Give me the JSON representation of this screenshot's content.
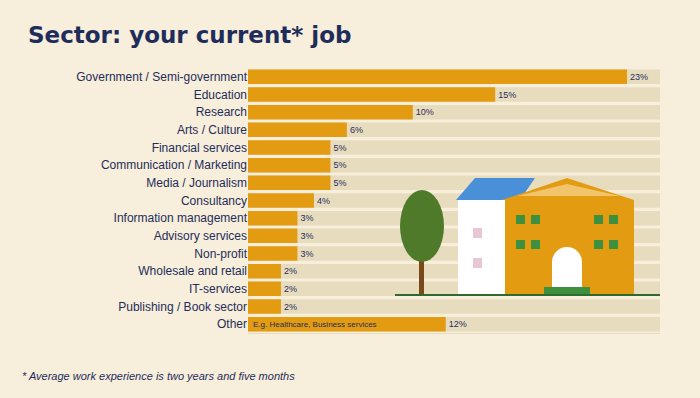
{
  "chart_data": {
    "type": "bar",
    "title": "Sector: your current* job",
    "orientation": "horizontal",
    "categories": [
      "Government / Semi-government",
      "Education",
      "Research",
      "Arts / Culture",
      "Financial services",
      "Communication / Marketing",
      "Media / Journalism",
      "Consultancy",
      "Information management",
      "Advisory services",
      "Non-profit",
      "Wholesale and retail",
      "IT-services",
      "Publishing / Book sector",
      "Other"
    ],
    "values": [
      23,
      15,
      10,
      6,
      5,
      5,
      5,
      4,
      3,
      3,
      3,
      2,
      2,
      2,
      12
    ],
    "value_labels": [
      "23%",
      "15%",
      "10%",
      "6%",
      "5%",
      "5%",
      "5%",
      "4%",
      "3%",
      "3%",
      "3%",
      "2%",
      "2%",
      "2%",
      "12%"
    ],
    "data_labels": true,
    "color": "#e39b12",
    "xlim": [
      0,
      25
    ],
    "xticks": [],
    "tick_labels": "y",
    "grid": false,
    "annotations": [
      {
        "text": "E.g. Healthcare, Business services",
        "category": "Other"
      }
    ],
    "footnote": "* Average work experience is two years and five months"
  }
}
